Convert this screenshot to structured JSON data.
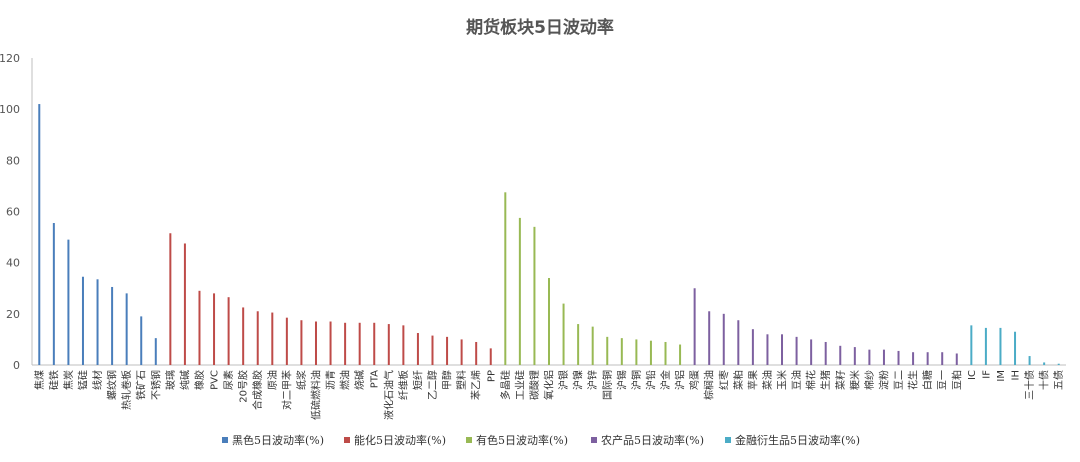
{
  "chart_data": {
    "type": "bar",
    "title": "期货板块5日波动率",
    "ylim": [
      0,
      120
    ],
    "yticks": [
      0,
      20,
      40,
      60,
      80,
      100,
      120
    ],
    "grid": false,
    "legend_position": "bottom",
    "series": [
      {
        "name": "黑色5日波动率(%)",
        "color": "#4a7ebb",
        "categories": [
          "焦煤",
          "硅铁",
          "焦炭",
          "锰硅",
          "线材",
          "螺纹钢",
          "热轧卷板",
          "铁矿石",
          "不锈钢"
        ],
        "values": [
          102,
          55.5,
          49,
          34.5,
          33.5,
          30.5,
          28,
          19,
          10.5
        ]
      },
      {
        "name": "能化5日波动率(%)",
        "color": "#be4b48",
        "categories": [
          "玻璃",
          "纯碱",
          "橡胶",
          "PVC",
          "尿素",
          "20号胶",
          "合成橡胶",
          "原油",
          "对二甲苯",
          "纸浆",
          "低硫燃料油",
          "沥青",
          "燃油",
          "烧碱",
          "PTA",
          "液化石油气",
          "纤维板",
          "短纤",
          "乙二醇",
          "甲醇",
          "塑料",
          "苯乙烯",
          "PP"
        ],
        "values": [
          51.5,
          47.5,
          29,
          28,
          26.5,
          22.5,
          21,
          20.5,
          18.5,
          17.5,
          17,
          17,
          16.5,
          16.5,
          16.5,
          16,
          15.5,
          12.5,
          11.5,
          11,
          10,
          9,
          6.5
        ]
      },
      {
        "name": "有色5日波动率(%)",
        "color": "#98b954",
        "categories": [
          "多晶硅",
          "工业硅",
          "碳酸锂",
          "氧化铝",
          "沪银",
          "沪镍",
          "沪锌",
          "国际铜",
          "沪锡",
          "沪铜",
          "沪铅",
          "沪金",
          "沪铝"
        ],
        "values": [
          67.5,
          57.5,
          54,
          34,
          24,
          16,
          15,
          11,
          10.5,
          10,
          9.5,
          9,
          8
        ]
      },
      {
        "name": "农产品5日波动率(%)",
        "color": "#7d60a0",
        "categories": [
          "鸡蛋",
          "棕榈油",
          "红枣",
          "菜粕",
          "苹果",
          "菜油",
          "玉米",
          "豆油",
          "棉花",
          "生猪",
          "菜籽",
          "粳米",
          "棉纱",
          "淀粉",
          "豆二",
          "花生",
          "白糖",
          "豆一",
          "豆粕"
        ],
        "values": [
          30,
          21,
          20,
          17.5,
          14,
          12,
          12,
          11,
          10,
          9,
          7.5,
          7,
          6,
          6,
          5.5,
          5,
          5,
          5,
          4.5
        ]
      },
      {
        "name": "金融衍生品5日波动率(%)",
        "color": "#4bacc6",
        "categories": [
          "IC",
          "IF",
          "IM",
          "IH",
          "三十债",
          "十债",
          "五债"
        ],
        "values": [
          15.5,
          14.5,
          14.5,
          13,
          3.5,
          1,
          0.5
        ]
      }
    ]
  }
}
